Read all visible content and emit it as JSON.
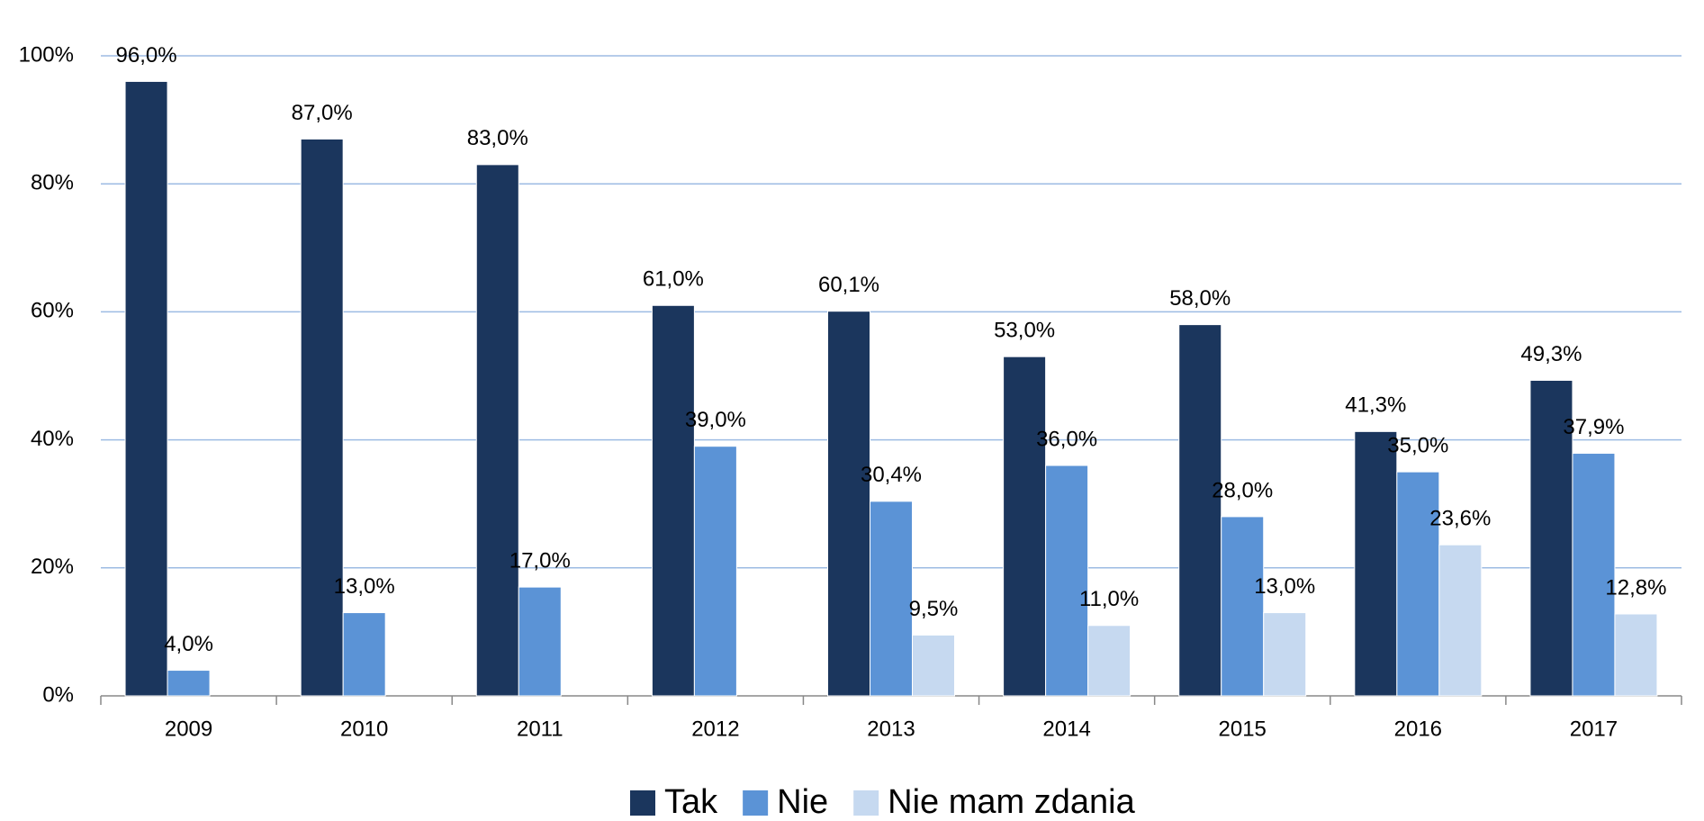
{
  "chart_data": {
    "type": "bar",
    "categories": [
      "2009",
      "2010",
      "2011",
      "2012",
      "2013",
      "2014",
      "2015",
      "2016",
      "2017"
    ],
    "series": [
      {
        "name": "Tak",
        "color": "#1b365d",
        "values": [
          96.0,
          87.0,
          83.0,
          61.0,
          60.1,
          53.0,
          58.0,
          41.3,
          49.3
        ],
        "value_labels": [
          "96,0%",
          "87,0%",
          "83,0%",
          "61,0%",
          "60,1%",
          "53,0%",
          "58,0%",
          "41,3%",
          "49,3%"
        ]
      },
      {
        "name": "Nie",
        "color": "#5b93d6",
        "values": [
          4.0,
          13.0,
          17.0,
          39.0,
          30.4,
          36.0,
          28.0,
          35.0,
          37.9
        ],
        "value_labels": [
          "4,0%",
          "13,0%",
          "17,0%",
          "39,0%",
          "30,4%",
          "36,0%",
          "28,0%",
          "35,0%",
          "37,9%"
        ]
      },
      {
        "name": "Nie mam zdania",
        "color": "#c6d9f0",
        "values": [
          null,
          null,
          null,
          null,
          9.5,
          11.0,
          13.0,
          23.6,
          12.8
        ],
        "value_labels": [
          null,
          null,
          null,
          null,
          "9,5%",
          "11,0%",
          "13,0%",
          "23,6%",
          "12,8%"
        ]
      }
    ],
    "ylim": [
      0,
      100
    ],
    "yticks": [
      {
        "value": 0,
        "label": "0%"
      },
      {
        "value": 20,
        "label": "20%"
      },
      {
        "value": 40,
        "label": "40%"
      },
      {
        "value": 60,
        "label": "60%"
      },
      {
        "value": 80,
        "label": "80%"
      },
      {
        "value": 100,
        "label": "100%"
      }
    ],
    "grid": true,
    "legend": "bottom"
  }
}
